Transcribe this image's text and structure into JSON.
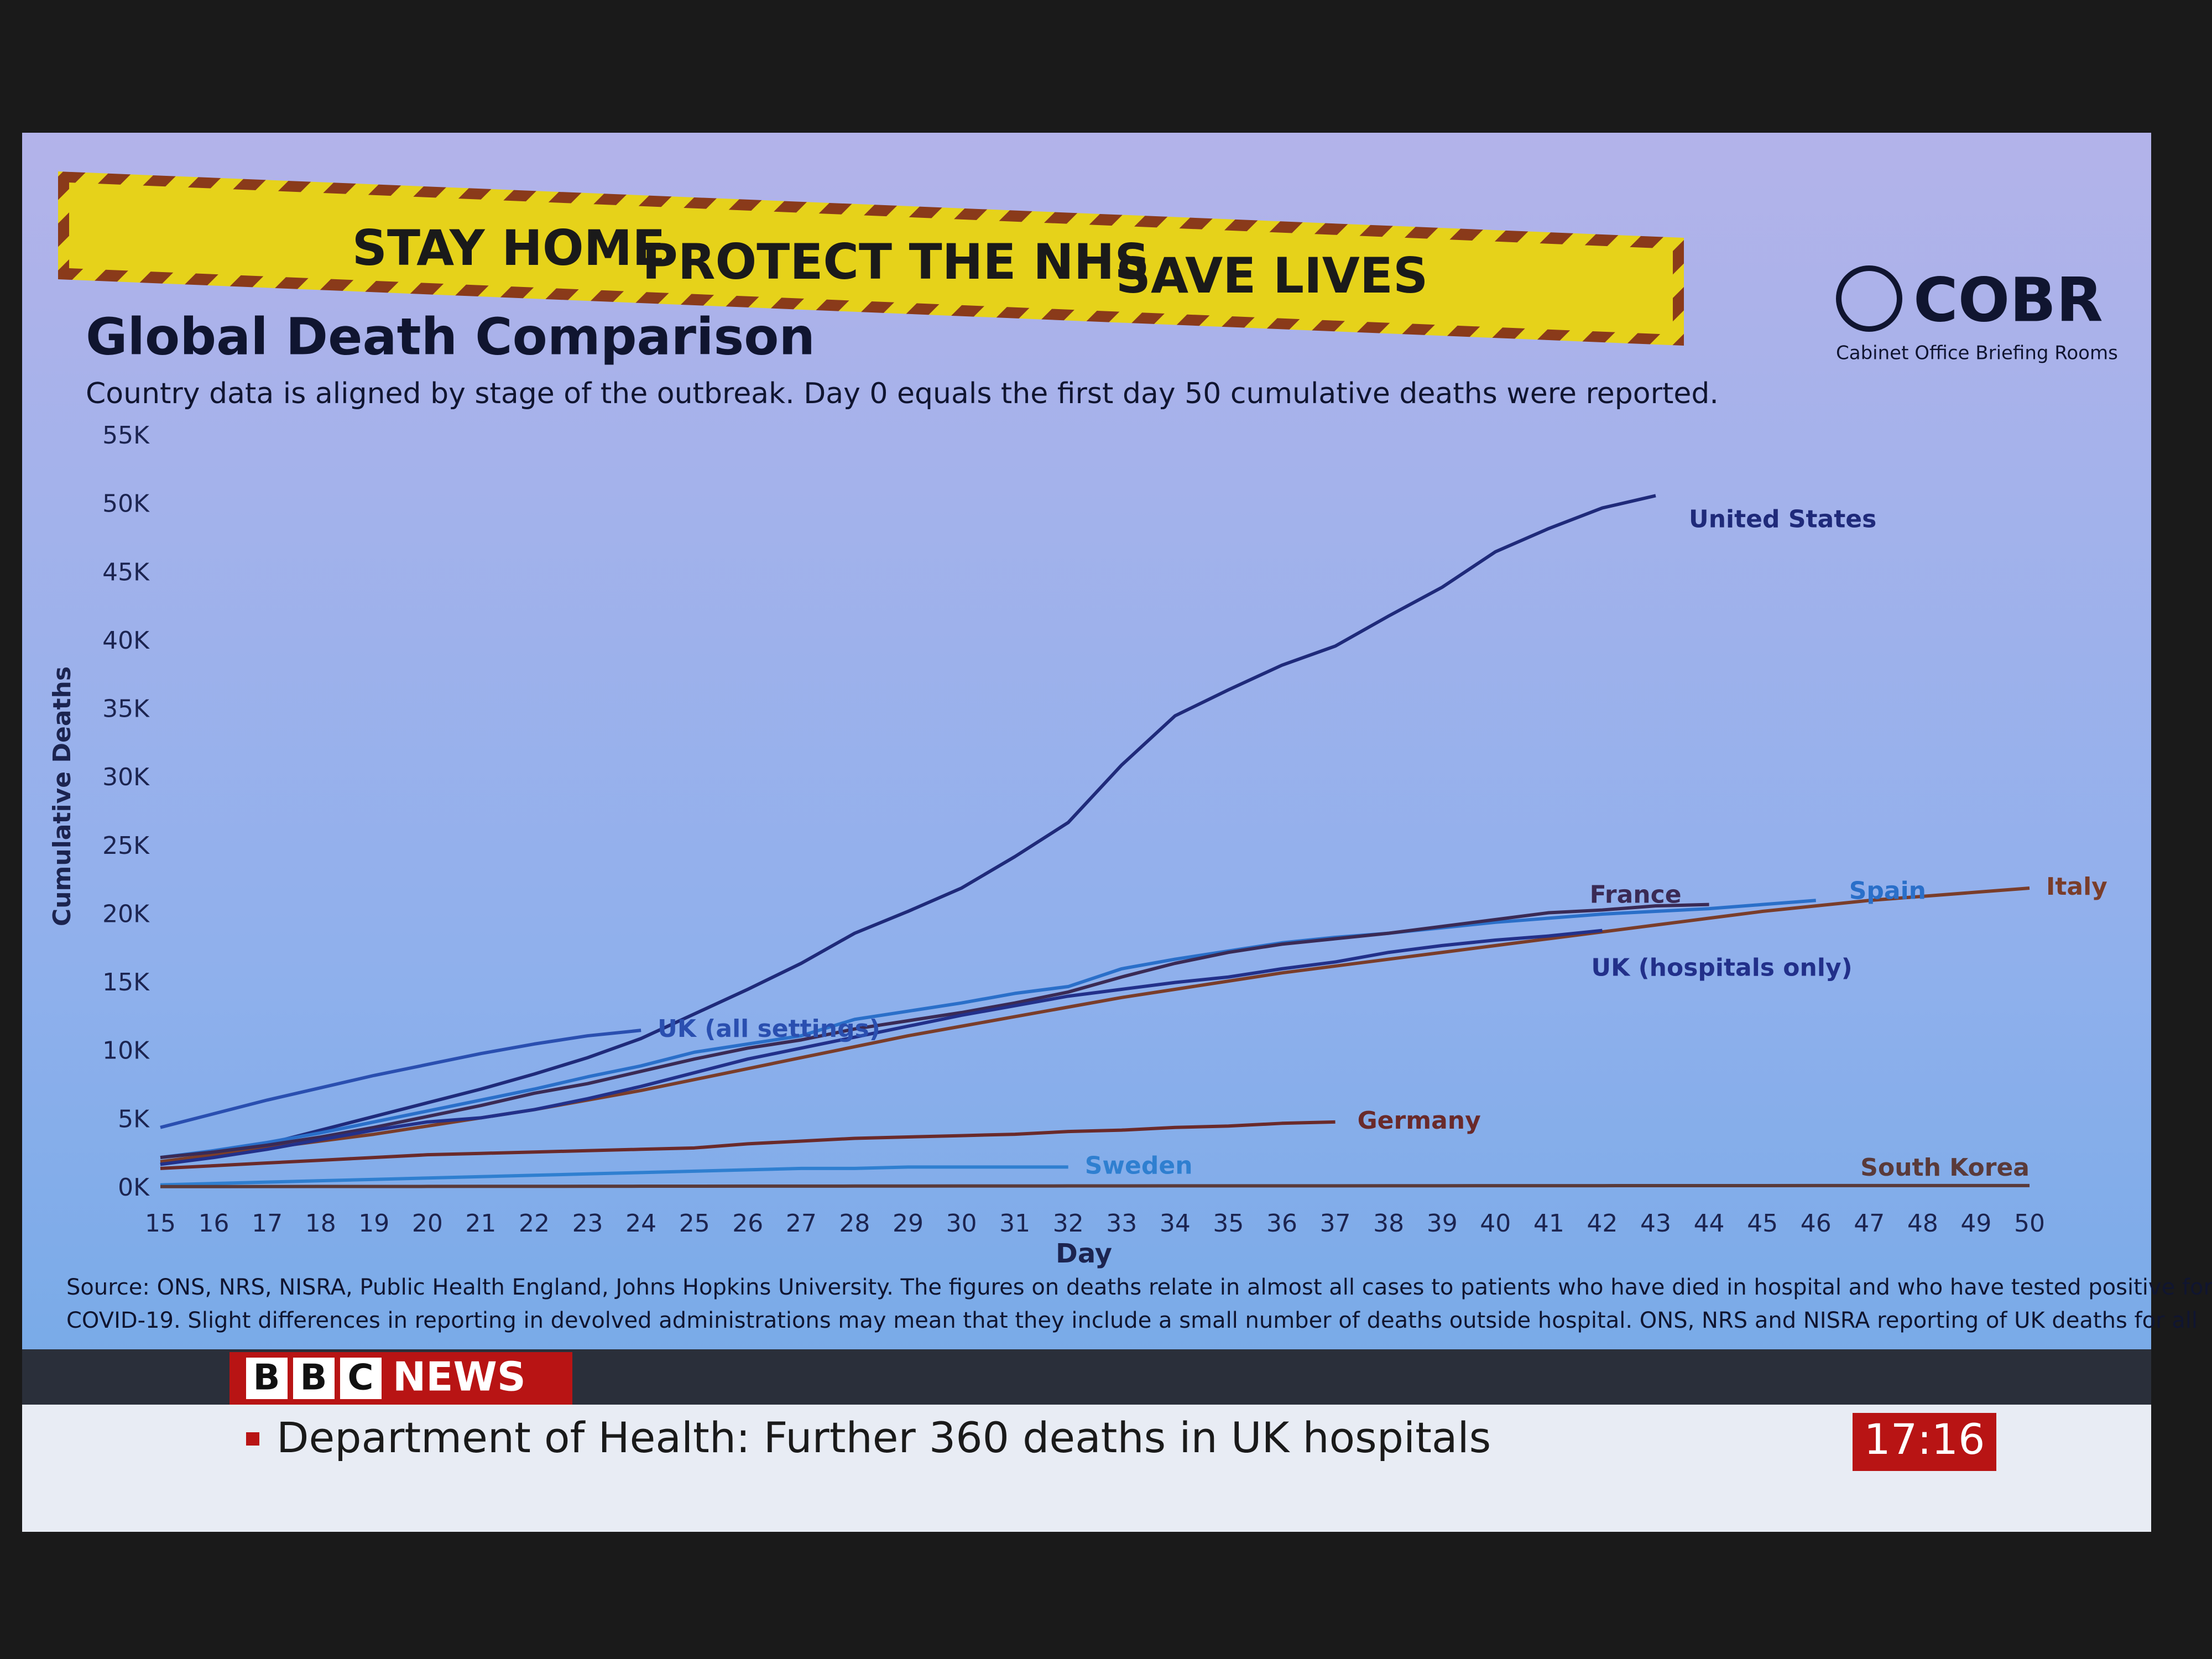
{
  "banner": [
    "STAY HOME",
    "PROTECT THE NHS",
    "SAVE LIVES"
  ],
  "brand": {
    "name": "COBR",
    "subtitle": "Cabinet Office Briefing Rooms"
  },
  "chart_data": {
    "type": "line",
    "title": "Global Death Comparison",
    "subtitle": "Country data is aligned by stage of the outbreak. Day 0 equals the first day 50 cumulative deaths were reported.",
    "y_label": "Cumulative Deaths",
    "x_label": "Day",
    "x": [
      15,
      16,
      17,
      18,
      19,
      20,
      21,
      22,
      23,
      24,
      25,
      26,
      27,
      28,
      29,
      30,
      31,
      32,
      33,
      34,
      35,
      36,
      37,
      38,
      39,
      40,
      41,
      42,
      43,
      44,
      45,
      46,
      47,
      48,
      49,
      50
    ],
    "xlim": [
      15,
      50
    ],
    "xticks": [
      15,
      16,
      17,
      18,
      19,
      20,
      21,
      22,
      23,
      24,
      25,
      26,
      27,
      28,
      29,
      30,
      31,
      32,
      33,
      34,
      35,
      36,
      37,
      38,
      39,
      40,
      41,
      42,
      43,
      44,
      45,
      46,
      47,
      48,
      49,
      50
    ],
    "ylim": [
      0,
      55000
    ],
    "yticks": [
      {
        "value": 0,
        "label": "0K"
      },
      {
        "value": 5000,
        "label": "5K"
      },
      {
        "value": 10000,
        "label": "10K"
      },
      {
        "value": 15000,
        "label": "15K"
      },
      {
        "value": 20000,
        "label": "20K"
      },
      {
        "value": 25000,
        "label": "25K"
      },
      {
        "value": 30000,
        "label": "30K"
      },
      {
        "value": 35000,
        "label": "35K"
      },
      {
        "value": 40000,
        "label": "40K"
      },
      {
        "value": 45000,
        "label": "45K"
      },
      {
        "value": 50000,
        "label": "50K"
      },
      {
        "value": 55000,
        "label": "55K"
      }
    ],
    "grid": false,
    "series": [
      {
        "name": "United States",
        "color": "#1f2a7a",
        "values": [
          1800,
          2500,
          3300,
          4300,
          5300,
          6300,
          7300,
          8400,
          9600,
          11000,
          12800,
          14600,
          16500,
          18700,
          20300,
          22000,
          24300,
          26800,
          31000,
          34600,
          36500,
          38300,
          39700,
          41900,
          44000,
          46600,
          48300,
          49800,
          50700,
          null,
          null,
          null,
          null,
          null,
          null,
          null
        ]
      },
      {
        "name": "Italy",
        "color": "#7a3d2a",
        "values": [
          2000,
          2500,
          3000,
          3500,
          4000,
          4600,
          5200,
          5800,
          6500,
          7200,
          8000,
          8800,
          9600,
          10400,
          11200,
          11900,
          12600,
          13300,
          14000,
          14600,
          15200,
          15800,
          16300,
          16800,
          17300,
          17800,
          18300,
          18800,
          19300,
          19800,
          20300,
          20700,
          21100,
          21400,
          21700,
          22000
        ]
      },
      {
        "name": "Spain",
        "color": "#2a6fc9",
        "values": [
          2300,
          2800,
          3400,
          4100,
          4900,
          5700,
          6500,
          7300,
          8200,
          9000,
          10000,
          10600,
          11200,
          12400,
          13000,
          13600,
          14300,
          14800,
          16100,
          16800,
          17400,
          18000,
          18400,
          18700,
          19100,
          19500,
          19800,
          20100,
          20300,
          20500,
          20800,
          21100,
          null,
          null,
          null,
          null
        ]
      },
      {
        "name": "France",
        "color": "#3a2a55",
        "values": [
          2300,
          2700,
          3200,
          3800,
          4500,
          5300,
          6100,
          7000,
          7700,
          8600,
          9500,
          10300,
          10900,
          11700,
          12300,
          12900,
          13600,
          14400,
          15500,
          16500,
          17300,
          17900,
          18300,
          18700,
          19200,
          19700,
          20200,
          20400,
          20700,
          20800,
          null,
          null,
          null,
          null,
          null,
          null
        ]
      },
      {
        "name": "UK (hospitals only)",
        "color": "#22308a",
        "values": [
          1800,
          2300,
          2900,
          3600,
          4300,
          4900,
          5200,
          5800,
          6600,
          7500,
          8500,
          9500,
          10300,
          11100,
          11900,
          12700,
          13400,
          14100,
          14600,
          15100,
          15500,
          16100,
          16600,
          17300,
          17800,
          18200,
          18500,
          18900,
          null,
          null,
          null,
          null,
          null,
          null,
          null,
          null
        ]
      },
      {
        "name": "UK (all settings)",
        "color": "#2a4fb0",
        "values": [
          4500,
          5500,
          6500,
          7400,
          8300,
          9100,
          9900,
          10600,
          11200,
          11600,
          null,
          null,
          null,
          null,
          null,
          null,
          null,
          null,
          null,
          null,
          null,
          null,
          null,
          null,
          null,
          null,
          null,
          null,
          null,
          null,
          null,
          null,
          null,
          null,
          null,
          null
        ]
      },
      {
        "name": "Germany",
        "color": "#6a2a2a",
        "values": [
          1500,
          1700,
          1900,
          2100,
          2300,
          2500,
          2600,
          2700,
          2800,
          2900,
          3000,
          3300,
          3500,
          3700,
          3800,
          3900,
          4000,
          4200,
          4300,
          4500,
          4600,
          4800,
          4900,
          null,
          null,
          null,
          null,
          null,
          null,
          null,
          null,
          null,
          null,
          null,
          null,
          null
        ]
      },
      {
        "name": "Sweden",
        "color": "#2f7fd0",
        "values": [
          300,
          400,
          500,
          600,
          700,
          800,
          900,
          1000,
          1100,
          1200,
          1300,
          1400,
          1500,
          1500,
          1600,
          1600,
          1600,
          1600,
          null,
          null,
          null,
          null,
          null,
          null,
          null,
          null,
          null,
          null,
          null,
          null,
          null,
          null,
          null,
          null,
          null,
          null
        ]
      },
      {
        "name": "South Korea",
        "color": "#5a3a3a",
        "values": [
          170,
          170,
          175,
          180,
          180,
          185,
          190,
          190,
          195,
          200,
          200,
          205,
          205,
          210,
          210,
          215,
          215,
          220,
          220,
          225,
          225,
          230,
          230,
          235,
          235,
          240,
          240,
          240,
          245,
          245,
          245,
          250,
          250,
          250,
          250,
          250
        ]
      }
    ]
  },
  "source": [
    "Source: ONS, NRS, NISRA, Public Health England, Johns Hopkins University. The figures on deaths relate in almost all cases to patients who have died in hospital and who have tested positive for",
    "COVID-19. Slight differences in reporting in devolved administrations may mean that they include a small number of deaths outside hospital. ONS, NRS and NISRA reporting of UK deaths for all"
  ],
  "news": {
    "logo": [
      "B",
      "B",
      "C",
      "NEWS"
    ],
    "ticker": "Department of Health: Further 360 deaths in UK hospitals",
    "time": "17:16"
  }
}
